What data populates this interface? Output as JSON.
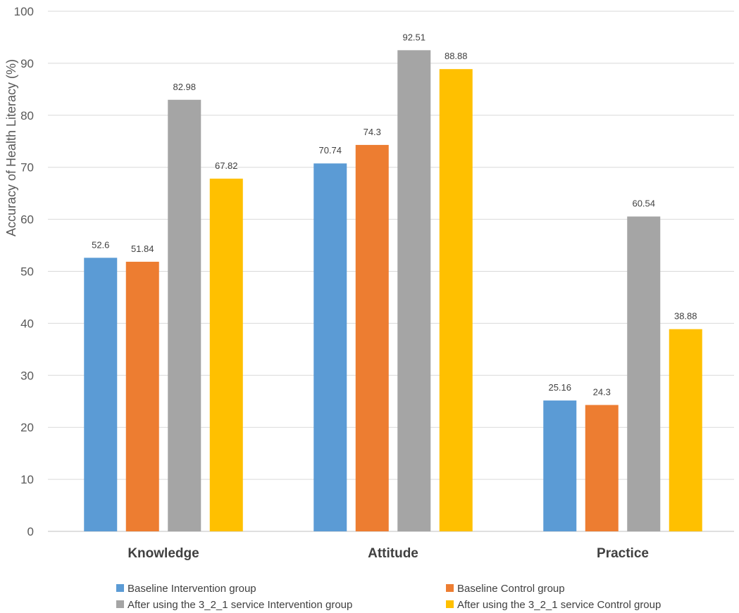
{
  "chart_data": {
    "type": "bar",
    "title": "",
    "xlabel": "",
    "ylabel": "Accuracy of Health Literacy (%)",
    "ylim": [
      0,
      100
    ],
    "yticks": [
      0,
      10,
      20,
      30,
      40,
      50,
      60,
      70,
      80,
      90,
      100
    ],
    "grid": true,
    "legend_position": "bottom",
    "categories": [
      "Knowledge",
      "Attitude",
      "Practice"
    ],
    "series": [
      {
        "name": "Baseline Intervention group",
        "color": "#5B9BD5",
        "values": [
          52.6,
          70.74,
          25.16
        ]
      },
      {
        "name": "Baseline Control group",
        "color": "#ED7D31",
        "values": [
          51.84,
          74.3,
          24.3
        ]
      },
      {
        "name": "After using the 3_2_1 service Intervention group",
        "color": "#A5A5A5",
        "values": [
          82.98,
          92.51,
          60.54
        ]
      },
      {
        "name": "After using the 3_2_1 service Control group",
        "color": "#FFC000",
        "values": [
          67.82,
          88.88,
          38.88
        ]
      }
    ]
  }
}
